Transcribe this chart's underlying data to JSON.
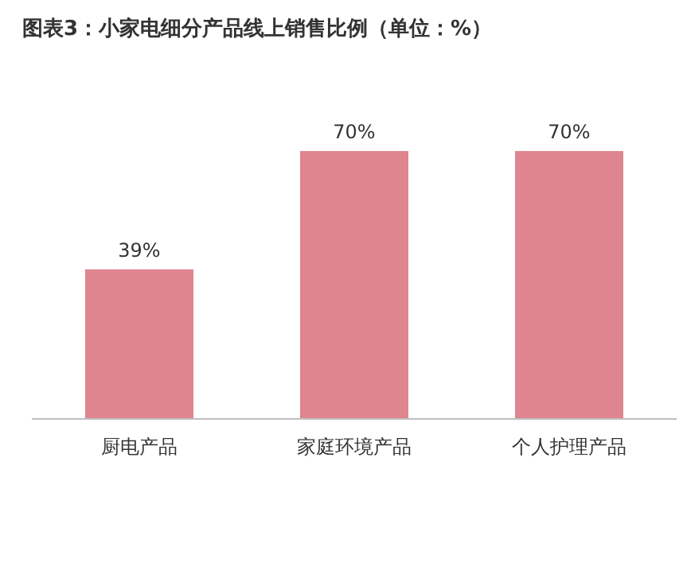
{
  "chart_data": {
    "type": "bar",
    "title": "图表3：小家电细分产品线上销售比例（单位：%）",
    "categories": [
      "厨电产品",
      "家庭环境产品",
      "个人护理产品"
    ],
    "values": [
      39,
      70,
      70
    ],
    "value_labels": [
      "39%",
      "70%",
      "70%"
    ],
    "color": "#df8590"
  }
}
